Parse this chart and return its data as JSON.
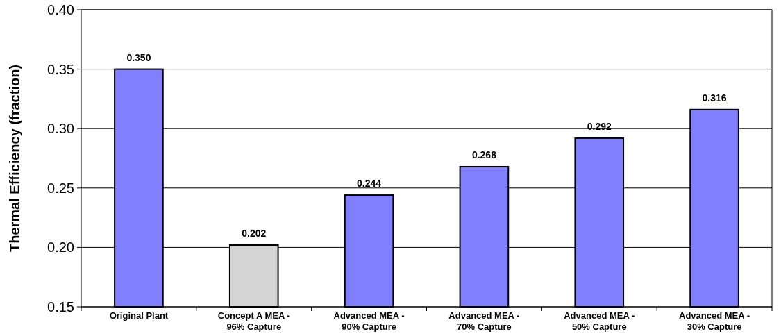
{
  "chart_data": {
    "type": "bar",
    "ylabel": "Thermal Efficiency (fraction)",
    "categories": [
      "Original Plant",
      "Concept A MEA - 96% Capture",
      "Advanced MEA - 90% Capture",
      "Advanced MEA - 70% Capture",
      "Advanced MEA - 50% Capture",
      "Advanced MEA - 30% Capture"
    ],
    "values": [
      0.35,
      0.202,
      0.244,
      0.268,
      0.292,
      0.316
    ],
    "value_labels": [
      "0.350",
      "0.202",
      "0.244",
      "0.268",
      "0.292",
      "0.316"
    ],
    "colors": [
      "#8080ff",
      "#d4d4d4",
      "#8080ff",
      "#8080ff",
      "#8080ff",
      "#8080ff"
    ],
    "ylim": [
      0.15,
      0.4
    ],
    "yticks": [
      {
        "value": 0.15,
        "label": "0.15"
      },
      {
        "value": 0.2,
        "label": "0.20"
      },
      {
        "value": 0.25,
        "label": "0.25"
      },
      {
        "value": 0.3,
        "label": "0.30"
      },
      {
        "value": 0.35,
        "label": "0.35"
      },
      {
        "value": 0.4,
        "label": "0.40"
      }
    ],
    "grid": "y"
  }
}
